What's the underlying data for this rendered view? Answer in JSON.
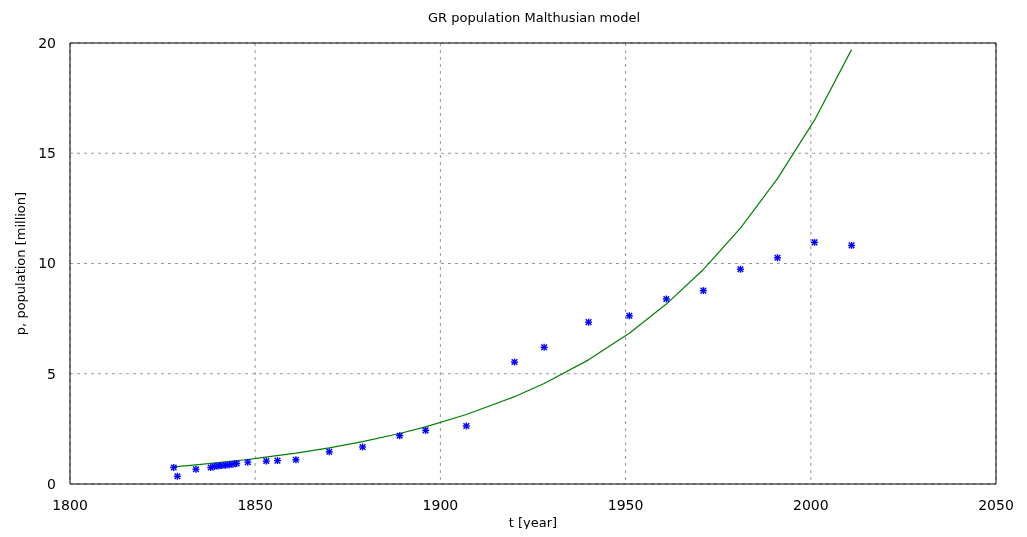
{
  "chart_data": {
    "type": "scatter",
    "title": "GR population Malthusian model",
    "xlabel": "t [year]",
    "ylabel": "p, population [million]",
    "xlim": [
      1800,
      2050
    ],
    "xticks": [
      1800,
      1850,
      1900,
      1950,
      2000,
      2050
    ],
    "ylim": [
      0,
      20
    ],
    "yticks": [
      0,
      5,
      10,
      15,
      20
    ],
    "grid": true,
    "marker": "cross",
    "series": [
      {
        "color": "#0000ff",
        "x": [
          1828,
          1829,
          1834,
          1838,
          1839,
          1840,
          1841,
          1842,
          1843,
          1844,
          1845,
          1848,
          1853,
          1856,
          1861,
          1870,
          1879,
          1889,
          1896,
          1907,
          1920,
          1928,
          1940,
          1951,
          1961,
          1971,
          1981,
          1991,
          2001,
          2011
        ],
        "values": [
          0.75,
          0.35,
          0.67,
          0.75,
          0.8,
          0.82,
          0.84,
          0.85,
          0.87,
          0.9,
          0.93,
          0.99,
          1.04,
          1.06,
          1.1,
          1.46,
          1.68,
          2.19,
          2.43,
          2.63,
          5.53,
          6.2,
          7.34,
          7.63,
          8.39,
          8.77,
          9.74,
          10.26,
          10.96,
          10.82
        ]
      },
      {
        "type": "line",
        "color": "#008000",
        "marker": "none",
        "line_style": "solid",
        "x": [
          1828,
          1834,
          1848,
          1861,
          1870,
          1879,
          1889,
          1896,
          1907,
          1920,
          1928,
          1940,
          1951,
          1961,
          1971,
          1981,
          1991,
          2001,
          2011
        ],
        "values": [
          0.78,
          0.87,
          1.11,
          1.4,
          1.64,
          1.92,
          2.29,
          2.59,
          3.15,
          3.96,
          4.56,
          5.63,
          6.84,
          8.16,
          9.73,
          11.6,
          13.85,
          16.5,
          19.7
        ]
      }
    ]
  }
}
